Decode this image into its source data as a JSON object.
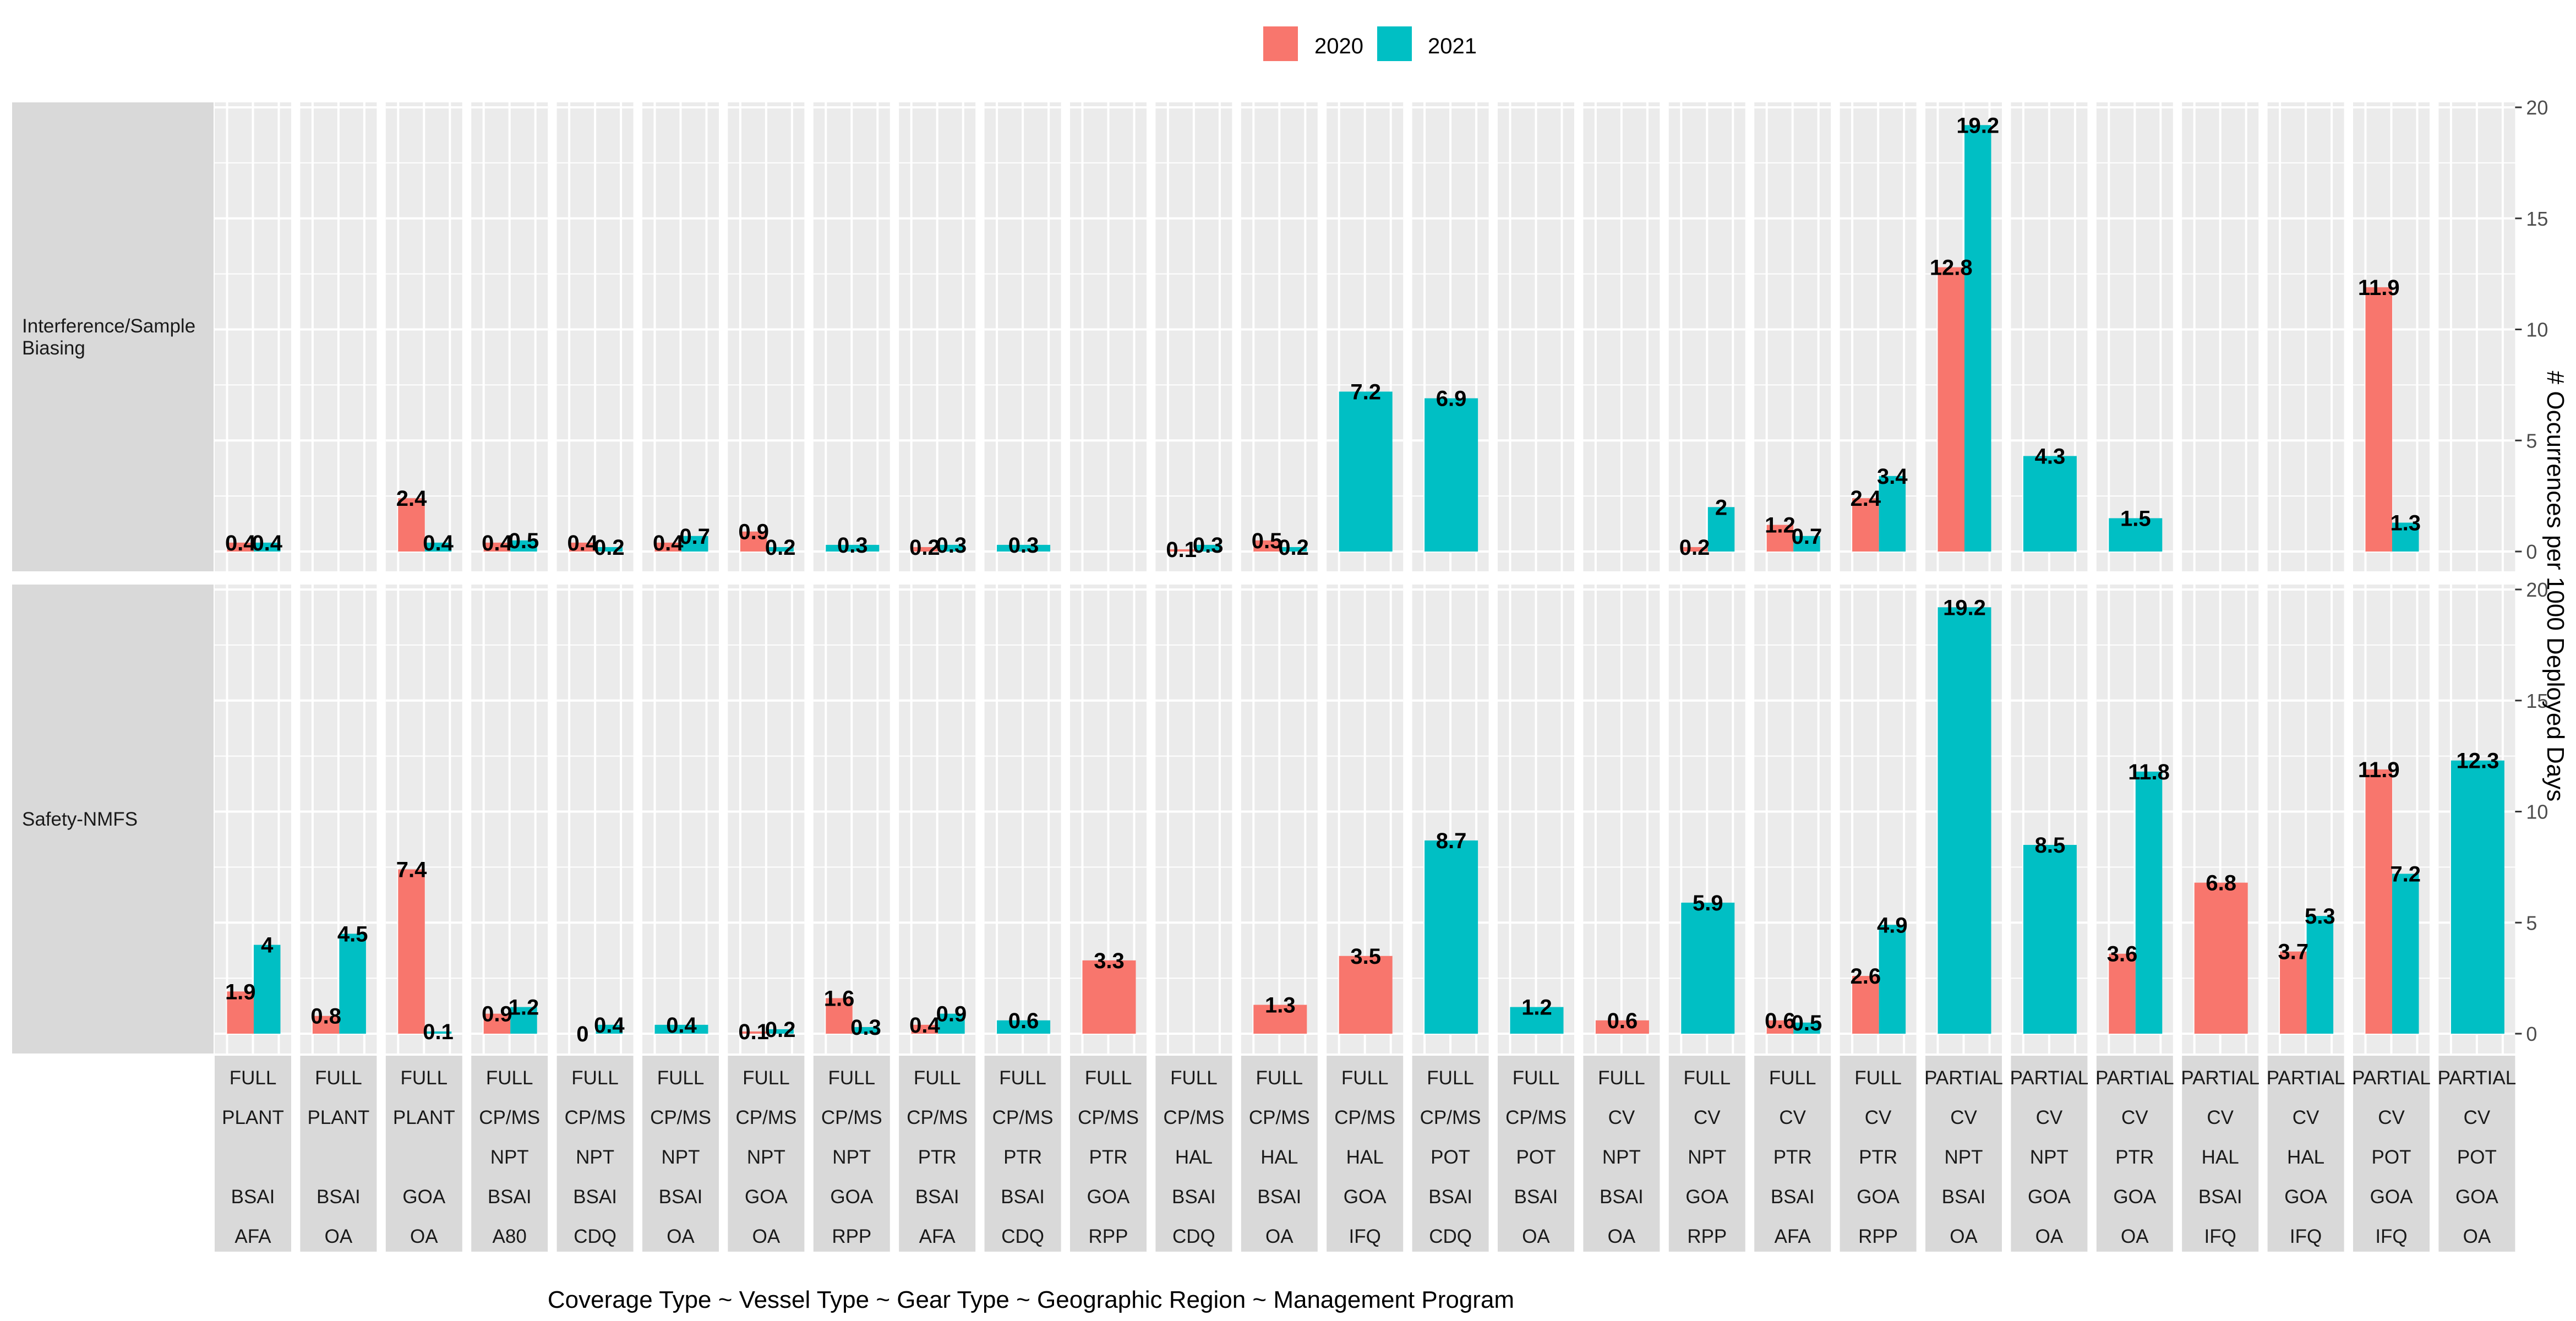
{
  "chart_data": {
    "type": "bar",
    "layout": "faceted grouped bar chart, rows = incident type, columns = strata",
    "legend": {
      "placement": "top",
      "entries": [
        {
          "name": "2020",
          "color": "#F8766D"
        },
        {
          "name": "2021",
          "color": "#00BFC4"
        }
      ]
    },
    "xlabel": "Coverage Type ~ Vessel Type ~ Gear Type ~ Geographic Region ~ Management Program",
    "ylabel": "# Occurrences per 1000 Deployed Days",
    "ylim": [
      0,
      20
    ],
    "yticks": [
      0,
      5,
      10,
      15,
      20
    ],
    "grid": true,
    "rows": [
      "Interference/Sample Biasing",
      "Safety-NMFS"
    ],
    "columns": [
      [
        "FULL",
        "PLANT",
        "",
        "BSAI",
        "AFA"
      ],
      [
        "FULL",
        "PLANT",
        "",
        "BSAI",
        "OA"
      ],
      [
        "FULL",
        "PLANT",
        "",
        "GOA",
        "OA"
      ],
      [
        "FULL",
        "CP/MS",
        "NPT",
        "BSAI",
        "A80"
      ],
      [
        "FULL",
        "CP/MS",
        "NPT",
        "BSAI",
        "CDQ"
      ],
      [
        "FULL",
        "CP/MS",
        "NPT",
        "BSAI",
        "OA"
      ],
      [
        "FULL",
        "CP/MS",
        "NPT",
        "GOA",
        "OA"
      ],
      [
        "FULL",
        "CP/MS",
        "NPT",
        "GOA",
        "RPP"
      ],
      [
        "FULL",
        "CP/MS",
        "PTR",
        "BSAI",
        "AFA"
      ],
      [
        "FULL",
        "CP/MS",
        "PTR",
        "BSAI",
        "CDQ"
      ],
      [
        "FULL",
        "CP/MS",
        "PTR",
        "GOA",
        "RPP"
      ],
      [
        "FULL",
        "CP/MS",
        "HAL",
        "BSAI",
        "CDQ"
      ],
      [
        "FULL",
        "CP/MS",
        "HAL",
        "BSAI",
        "OA"
      ],
      [
        "FULL",
        "CP/MS",
        "HAL",
        "GOA",
        "IFQ"
      ],
      [
        "FULL",
        "CP/MS",
        "POT",
        "BSAI",
        "CDQ"
      ],
      [
        "FULL",
        "CP/MS",
        "POT",
        "BSAI",
        "OA"
      ],
      [
        "FULL",
        "CV",
        "NPT",
        "BSAI",
        "OA"
      ],
      [
        "FULL",
        "CV",
        "NPT",
        "GOA",
        "RPP"
      ],
      [
        "FULL",
        "CV",
        "PTR",
        "BSAI",
        "AFA"
      ],
      [
        "FULL",
        "CV",
        "PTR",
        "GOA",
        "RPP"
      ],
      [
        "PARTIAL",
        "CV",
        "NPT",
        "BSAI",
        "OA"
      ],
      [
        "PARTIAL",
        "CV",
        "NPT",
        "GOA",
        "OA"
      ],
      [
        "PARTIAL",
        "CV",
        "PTR",
        "GOA",
        "OA"
      ],
      [
        "PARTIAL",
        "CV",
        "HAL",
        "BSAI",
        "IFQ"
      ],
      [
        "PARTIAL",
        "CV",
        "HAL",
        "GOA",
        "IFQ"
      ],
      [
        "PARTIAL",
        "CV",
        "POT",
        "GOA",
        "IFQ"
      ],
      [
        "PARTIAL",
        "CV",
        "POT",
        "GOA",
        "OA"
      ]
    ],
    "series": [
      {
        "row": "Interference/Sample Biasing",
        "name": "2020",
        "values": [
          0.4,
          null,
          2.4,
          0.4,
          0.4,
          0.4,
          0.9,
          null,
          0.2,
          null,
          null,
          0.1,
          0.5,
          null,
          null,
          null,
          null,
          0.2,
          1.2,
          2.4,
          12.8,
          null,
          null,
          null,
          null,
          11.9,
          null
        ]
      },
      {
        "row": "Interference/Sample Biasing",
        "name": "2021",
        "values": [
          0.4,
          null,
          0.4,
          0.5,
          0.2,
          0.7,
          0.2,
          0.3,
          0.3,
          0.3,
          null,
          0.3,
          0.2,
          7.2,
          6.9,
          null,
          null,
          2,
          0.7,
          3.4,
          19.2,
          4.3,
          1.5,
          null,
          null,
          1.3,
          null
        ]
      },
      {
        "row": "Safety-NMFS",
        "name": "2020",
        "values": [
          1.9,
          0.8,
          7.4,
          0.9,
          0,
          null,
          0.1,
          1.6,
          0.4,
          null,
          3.3,
          null,
          1.3,
          3.5,
          null,
          null,
          0.6,
          null,
          0.6,
          2.6,
          null,
          null,
          3.6,
          6.8,
          3.7,
          11.9,
          null
        ]
      },
      {
        "row": "Safety-NMFS",
        "name": "2021",
        "values": [
          4,
          4.5,
          0.1,
          1.2,
          0.4,
          0.4,
          0.2,
          0.3,
          0.9,
          0.6,
          null,
          null,
          null,
          null,
          8.7,
          1.2,
          null,
          5.9,
          0.5,
          4.9,
          19.2,
          8.5,
          11.8,
          null,
          5.3,
          7.2,
          12.3
        ]
      }
    ]
  }
}
